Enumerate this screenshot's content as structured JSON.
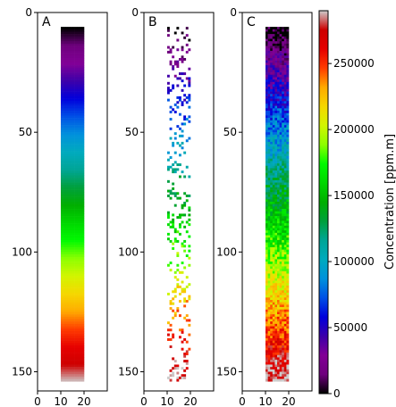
{
  "chart_data": {
    "type": "heatmap",
    "colormap": "nipy_spectral",
    "colorbar": {
      "label": "Concentration [ppm.m]",
      "range": [
        0,
        290000
      ],
      "ticks": [
        0,
        50000,
        100000,
        150000,
        200000,
        250000
      ],
      "tick_labels": [
        "0",
        "50000",
        "100000",
        "150000",
        "200000",
        "250000"
      ]
    },
    "panels": [
      {
        "label": "A",
        "description": "smooth gradient",
        "xlim": [
          0,
          30
        ],
        "ylim": [
          158,
          0
        ],
        "x_ticks": [
          0,
          10,
          20
        ],
        "x_tick_labels": [
          "0",
          "10",
          "20"
        ],
        "y_ticks": [
          0,
          50,
          100,
          150
        ],
        "y_tick_labels": [
          "0",
          "50",
          "100",
          "150"
        ],
        "plume_x": [
          10,
          20
        ],
        "plume_y": [
          6,
          154
        ],
        "concentration_at_top": 0,
        "concentration_at_bottom": 290000,
        "fill_fraction": 1.0,
        "noise": 0.0
      },
      {
        "label": "B",
        "description": "sparse samples",
        "xlim": [
          0,
          30
        ],
        "ylim": [
          158,
          0
        ],
        "x_ticks": [
          0,
          10,
          20
        ],
        "x_tick_labels": [
          "0",
          "10",
          "20"
        ],
        "y_ticks": [
          0,
          50,
          100,
          150
        ],
        "y_tick_labels": [
          "0",
          "50",
          "100",
          "150"
        ],
        "plume_x": [
          10,
          20
        ],
        "plume_y": [
          6,
          154
        ],
        "concentration_at_top": 0,
        "concentration_at_bottom": 290000,
        "fill_fraction": 0.22,
        "noise": 0.06
      },
      {
        "label": "C",
        "description": "noisy dense field",
        "xlim": [
          0,
          30
        ],
        "ylim": [
          158,
          0
        ],
        "x_ticks": [
          0,
          10,
          20
        ],
        "x_tick_labels": [
          "0",
          "10",
          "20"
        ],
        "y_ticks": [
          0,
          50,
          100,
          150
        ],
        "y_tick_labels": [
          "0",
          "50",
          "100",
          "150"
        ],
        "plume_x": [
          10,
          20
        ],
        "plume_y": [
          6,
          154
        ],
        "concentration_at_top": 0,
        "concentration_at_bottom": 290000,
        "fill_fraction": 1.0,
        "noise": 0.07
      }
    ]
  }
}
